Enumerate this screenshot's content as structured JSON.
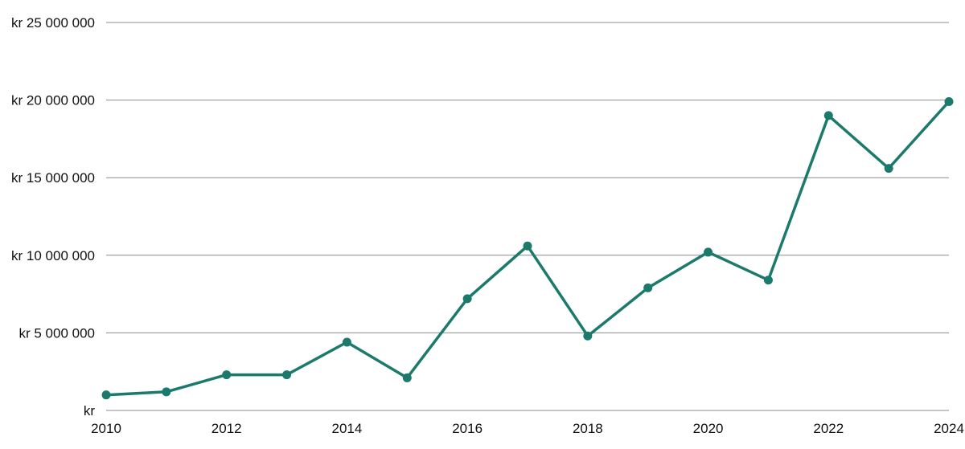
{
  "chart_data": {
    "type": "line",
    "title": "",
    "xlabel": "",
    "ylabel": "",
    "x": [
      2010,
      2011,
      2012,
      2013,
      2014,
      2015,
      2016,
      2017,
      2018,
      2019,
      2020,
      2021,
      2022,
      2023,
      2024
    ],
    "series": [
      {
        "values": [
          1000000,
          1200000,
          2300000,
          2300000,
          4400000,
          2100000,
          7200000,
          10600000,
          4800000,
          7900000,
          10200000,
          8400000,
          19000000,
          15600000,
          19900000
        ],
        "color": "#1b7a6b"
      }
    ],
    "xlim": [
      2010,
      2024
    ],
    "ylim": [
      0,
      25000000
    ],
    "x_ticks": [
      2010,
      2012,
      2014,
      2016,
      2018,
      2020,
      2022,
      2024
    ],
    "y_ticks": [
      0,
      5000000,
      10000000,
      15000000,
      20000000,
      25000000
    ],
    "y_tick_labels": [
      "kr",
      "kr 5 000 000",
      "kr 10 000 000",
      "kr 15 000 000",
      "kr 20 000 000",
      "kr 25 000 000"
    ],
    "grid": "horizontal",
    "legend": "none"
  }
}
